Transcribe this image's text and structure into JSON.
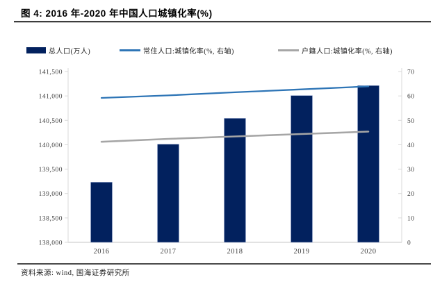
{
  "figure": {
    "title": "图 4: 2016 年-2020 年中国人口城镇化率(%)",
    "source": "资料来源: wind, 国海证券研究所"
  },
  "legend": {
    "items": [
      {
        "label": "总人口(万人)",
        "type": "bar",
        "color": "#02215e"
      },
      {
        "label": "常住人口:城镇化率(%, 右轴)",
        "type": "line",
        "color": "#2e75b6"
      },
      {
        "label": "户籍人口:城镇化率(%, 右轴)",
        "type": "line",
        "color": "#a6a6a6"
      }
    ]
  },
  "chart_data": {
    "type": "bar+line combo",
    "title": "2016 年-2020 年中国人口城镇化率(%)",
    "categories": [
      "2016",
      "2017",
      "2018",
      "2019",
      "2020"
    ],
    "bar_series": {
      "name": "总人口(万人)",
      "axis": "left",
      "color": "#02215e",
      "values": [
        139232,
        140011,
        140541,
        141008,
        141212
      ]
    },
    "line_series": [
      {
        "name": "常住人口:城镇化率(%, 右轴)",
        "axis": "right",
        "color": "#2e75b6",
        "values": [
          59.2,
          60.2,
          61.5,
          62.7,
          63.9
        ]
      },
      {
        "name": "户籍人口:城镇化率(%, 右轴)",
        "axis": "right",
        "color": "#a6a6a6",
        "values": [
          41.2,
          42.4,
          43.4,
          44.4,
          45.4
        ]
      }
    ],
    "left_axis": {
      "min": 138000,
      "max": 141500,
      "step": 500,
      "tick_labels": [
        "141,500",
        "141,000",
        "140,500",
        "140,000",
        "139,500",
        "139,000",
        "138,500",
        "138,000"
      ]
    },
    "right_axis": {
      "min": 0,
      "max": 70,
      "step": 10,
      "tick_labels": [
        "70",
        "60",
        "50",
        "40",
        "30",
        "20",
        "10",
        "0"
      ]
    },
    "grid": false,
    "legend_position": "top",
    "axis_line_color": "#d9d9d9",
    "tick_label_color": "#404040"
  }
}
